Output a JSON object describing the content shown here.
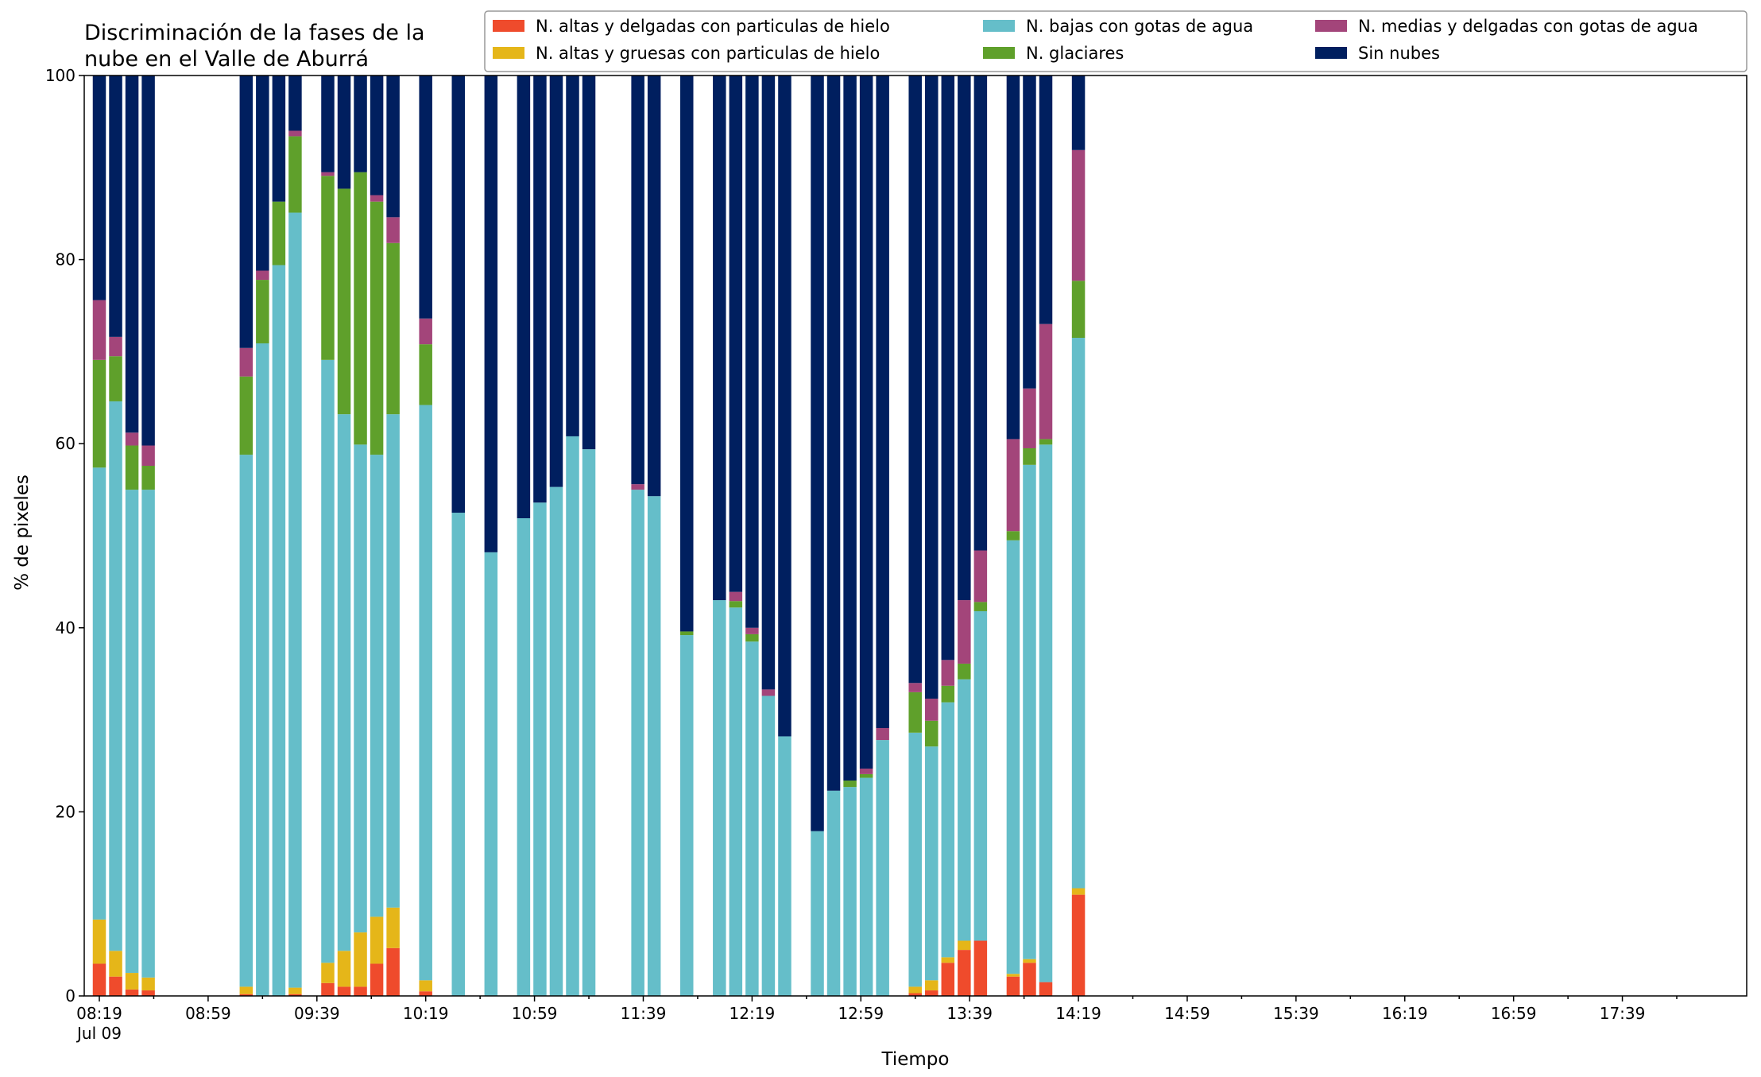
{
  "chart_data": {
    "type": "bar",
    "stacked": true,
    "title_lines": [
      "Discriminación de la fases de la",
      "nube en el Valle de Aburrá"
    ],
    "xlabel": "Tiempo",
    "ylabel": "% de pixeles",
    "ylim": [
      0,
      100
    ],
    "yticks": [
      "0",
      "20",
      "40",
      "60",
      "80",
      "100"
    ],
    "xtick_labels": [
      "08:19",
      "08:59",
      "09:39",
      "10:19",
      "10:59",
      "11:39",
      "12:19",
      "12:59",
      "13:39",
      "14:19",
      "14:59",
      "15:39",
      "16:19",
      "16:59",
      "17:39"
    ],
    "x_date_label": "Jul 09",
    "x_time_range": [
      "08:19",
      "17:59"
    ],
    "grid": false,
    "legend_position": "top",
    "series": [
      {
        "name": "N. altas y delgadas con particulas de hielo",
        "color": "#ef4b2c"
      },
      {
        "name": "N. altas y gruesas con particulas de hielo",
        "color": "#e5b619"
      },
      {
        "name": "N. bajas con gotas de agua",
        "color": "#65bec9"
      },
      {
        "name": "N. glaciares",
        "color": "#5fa02b"
      },
      {
        "name": "N. medias y delgadas con gotas de agua",
        "color": "#a3457a"
      },
      {
        "name": "Sin nubes",
        "color": "#001f5f"
      }
    ],
    "bars": [
      {
        "time": "08:19",
        "values": [
          3.5,
          4.8,
          49.1,
          11.7,
          6.5,
          24.4
        ]
      },
      {
        "time": "08:25",
        "values": [
          2.1,
          2.8,
          59.7,
          4.9,
          2.1,
          28.4
        ]
      },
      {
        "time": "08:31",
        "values": [
          0.7,
          1.8,
          52.5,
          4.8,
          1.4,
          38.8
        ]
      },
      {
        "time": "08:37",
        "values": [
          0.6,
          1.4,
          53.0,
          2.6,
          2.2,
          40.2
        ]
      },
      {
        "time": "09:13",
        "values": [
          0.2,
          0.8,
          57.8,
          8.5,
          3.1,
          29.6
        ]
      },
      {
        "time": "09:19",
        "values": [
          0.0,
          0.0,
          70.9,
          6.9,
          1.0,
          21.2
        ]
      },
      {
        "time": "09:25",
        "values": [
          0.0,
          0.0,
          79.4,
          6.9,
          0.0,
          13.7
        ]
      },
      {
        "time": "09:31",
        "values": [
          0.2,
          0.7,
          84.2,
          8.3,
          0.6,
          6.0
        ]
      },
      {
        "time": "09:43",
        "values": [
          1.4,
          2.2,
          65.5,
          20.0,
          0.4,
          10.5
        ]
      },
      {
        "time": "09:49",
        "values": [
          1.0,
          3.9,
          58.3,
          24.5,
          0.0,
          12.3
        ]
      },
      {
        "time": "09:55",
        "values": [
          1.0,
          5.9,
          53.0,
          29.6,
          0.0,
          10.5
        ]
      },
      {
        "time": "10:01",
        "values": [
          3.5,
          5.1,
          50.2,
          27.5,
          0.7,
          13.0
        ]
      },
      {
        "time": "10:07",
        "values": [
          5.2,
          4.4,
          53.6,
          18.6,
          2.8,
          15.4
        ]
      },
      {
        "time": "10:19",
        "values": [
          0.5,
          1.2,
          62.5,
          6.6,
          2.8,
          26.4
        ]
      },
      {
        "time": "10:31",
        "values": [
          0.0,
          0.0,
          52.5,
          0.0,
          0.0,
          47.5
        ]
      },
      {
        "time": "10:43",
        "values": [
          0.0,
          0.0,
          48.2,
          0.0,
          0.0,
          51.8
        ]
      },
      {
        "time": "10:55",
        "values": [
          0.0,
          0.0,
          51.9,
          0.0,
          0.0,
          48.1
        ]
      },
      {
        "time": "11:01",
        "values": [
          0.0,
          0.0,
          53.6,
          0.0,
          0.0,
          46.4
        ]
      },
      {
        "time": "11:07",
        "values": [
          0.0,
          0.0,
          55.3,
          0.0,
          0.0,
          44.7
        ]
      },
      {
        "time": "11:13",
        "values": [
          0.0,
          0.0,
          60.8,
          0.0,
          0.0,
          39.2
        ]
      },
      {
        "time": "11:19",
        "values": [
          0.0,
          0.0,
          59.4,
          0.0,
          0.0,
          40.6
        ]
      },
      {
        "time": "11:37",
        "values": [
          0.0,
          0.0,
          55.0,
          0.0,
          0.6,
          44.4
        ]
      },
      {
        "time": "11:43",
        "values": [
          0.0,
          0.0,
          54.3,
          0.0,
          0.0,
          45.7
        ]
      },
      {
        "time": "11:55",
        "values": [
          0.0,
          0.0,
          39.2,
          0.4,
          0.0,
          60.4
        ]
      },
      {
        "time": "12:07",
        "values": [
          0.0,
          0.0,
          43.0,
          0.0,
          0.0,
          57.0
        ]
      },
      {
        "time": "12:13",
        "values": [
          0.0,
          0.0,
          42.2,
          0.7,
          1.0,
          56.1
        ]
      },
      {
        "time": "12:19",
        "values": [
          0.0,
          0.0,
          38.5,
          0.8,
          0.7,
          60.0
        ]
      },
      {
        "time": "12:25",
        "values": [
          0.0,
          0.0,
          32.6,
          0.0,
          0.7,
          66.7
        ]
      },
      {
        "time": "12:31",
        "values": [
          0.0,
          0.0,
          28.2,
          0.0,
          0.0,
          71.8
        ]
      },
      {
        "time": "12:43",
        "values": [
          0.0,
          0.0,
          17.9,
          0.0,
          0.0,
          82.1
        ]
      },
      {
        "time": "12:49",
        "values": [
          0.0,
          0.0,
          22.3,
          0.0,
          0.0,
          77.7
        ]
      },
      {
        "time": "12:55",
        "values": [
          0.0,
          0.0,
          22.7,
          0.7,
          0.0,
          76.6
        ]
      },
      {
        "time": "13:01",
        "values": [
          0.0,
          0.0,
          23.7,
          0.4,
          0.6,
          75.3
        ]
      },
      {
        "time": "13:07",
        "values": [
          0.0,
          0.0,
          27.8,
          0.0,
          1.3,
          70.9
        ]
      },
      {
        "time": "13:19",
        "values": [
          0.3,
          0.7,
          27.6,
          4.4,
          1.0,
          66.0
        ]
      },
      {
        "time": "13:25",
        "values": [
          0.6,
          1.1,
          25.4,
          2.8,
          2.4,
          67.7
        ]
      },
      {
        "time": "13:31",
        "values": [
          3.6,
          0.6,
          27.7,
          1.8,
          2.8,
          63.5
        ]
      },
      {
        "time": "13:37",
        "values": [
          5.0,
          1.0,
          28.4,
          1.7,
          6.9,
          57.0
        ]
      },
      {
        "time": "13:43",
        "values": [
          6.0,
          0.0,
          35.8,
          1.0,
          5.6,
          51.6
        ]
      },
      {
        "time": "13:55",
        "values": [
          2.1,
          0.3,
          47.1,
          1.0,
          10.0,
          39.5
        ]
      },
      {
        "time": "14:01",
        "values": [
          3.6,
          0.4,
          53.7,
          1.8,
          6.5,
          34.0
        ]
      },
      {
        "time": "14:07",
        "values": [
          1.5,
          0.0,
          58.4,
          0.6,
          12.5,
          27.0
        ]
      },
      {
        "time": "14:19",
        "values": [
          11.0,
          0.7,
          59.8,
          6.2,
          14.2,
          8.1
        ]
      }
    ]
  }
}
